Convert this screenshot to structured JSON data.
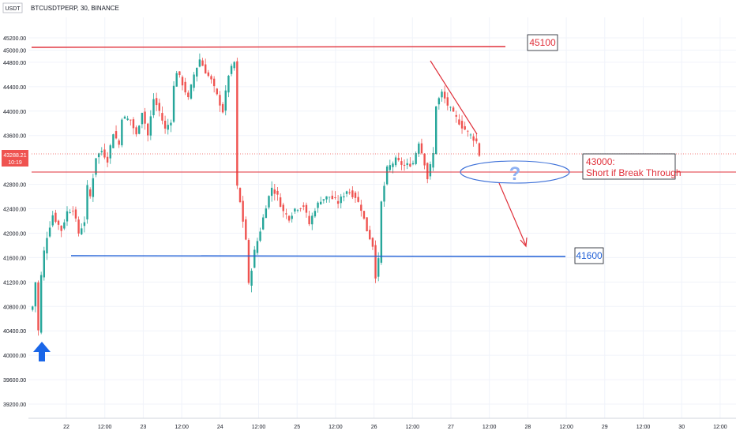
{
  "header": {
    "currency": "USDT",
    "symbol_line": "BTCUSDTPERP, 30, BINANCE"
  },
  "price_tag": {
    "price": "43288.21",
    "countdown": "10:19"
  },
  "colors": {
    "up": "#26a69a",
    "down": "#ef5350",
    "resistance": "#e0303a",
    "support": "#1f5fd6",
    "arrow_up": "#1a66e8",
    "grid": "#f0f3fa",
    "axis_text": "#131722"
  },
  "annotations": {
    "resistance_label": "45100",
    "breakout_label_line1": "43000:",
    "breakout_label_line2": "Short if Break Through",
    "support_label": "41600",
    "question_mark": "?"
  },
  "chart_data": {
    "type": "candlestick",
    "title": "BTCUSDTPERP, 30, BINANCE",
    "ylim": [
      39100,
      45350
    ],
    "y_ticks": [
      "45200.00",
      "45000.00",
      "44800.00",
      "44400.00",
      "44000.00",
      "43600.00",
      "42800.00",
      "42400.00",
      "42000.00",
      "41600.00",
      "41200.00",
      "40800.00",
      "40400.00",
      "40000.00",
      "39600.00",
      "39200.00"
    ],
    "x_ticks": [
      "22",
      "12:00",
      "23",
      "12:00",
      "24",
      "12:00",
      "25",
      "12:00",
      "26",
      "12:00",
      "27",
      "12:00",
      "28",
      "12:00",
      "29",
      "12:00",
      "30",
      "12:00"
    ],
    "levels": [
      {
        "name": "resistance",
        "value": 45100
      },
      {
        "name": "break_level",
        "value": 43000
      },
      {
        "name": "support",
        "value": 41600
      }
    ],
    "current_price": 43288.21,
    "anchors": [
      [
        0,
        40800
      ],
      [
        1,
        41200
      ],
      [
        2,
        40400
      ],
      [
        3,
        41300
      ],
      [
        4,
        41700
      ],
      [
        5,
        41950
      ],
      [
        7,
        42300
      ],
      [
        10,
        42050
      ],
      [
        12,
        42350
      ],
      [
        14,
        42400
      ],
      [
        16,
        42000
      ],
      [
        18,
        42200
      ],
      [
        19,
        42750
      ],
      [
        20,
        42600
      ],
      [
        22,
        43250
      ],
      [
        24,
        43350
      ],
      [
        26,
        43200
      ],
      [
        28,
        43650
      ],
      [
        30,
        43450
      ],
      [
        31,
        43900
      ],
      [
        34,
        43850
      ],
      [
        36,
        43600
      ],
      [
        38,
        44000
      ],
      [
        40,
        43600
      ],
      [
        42,
        44200
      ],
      [
        44,
        44000
      ],
      [
        46,
        43700
      ],
      [
        48,
        43850
      ],
      [
        49,
        44400
      ],
      [
        50,
        44650
      ],
      [
        52,
        44450
      ],
      [
        54,
        44200
      ],
      [
        56,
        44600
      ],
      [
        58,
        44850
      ],
      [
        60,
        44650
      ],
      [
        62,
        44500
      ],
      [
        64,
        44250
      ],
      [
        66,
        44000
      ],
      [
        68,
        44600
      ],
      [
        70,
        44800
      ],
      [
        71,
        42750
      ],
      [
        72,
        42500
      ],
      [
        74,
        41900
      ],
      [
        75,
        41150
      ],
      [
        77,
        41700
      ],
      [
        79,
        42050
      ],
      [
        81,
        42450
      ],
      [
        83,
        42750
      ],
      [
        85,
        42600
      ],
      [
        87,
        42350
      ],
      [
        89,
        42250
      ],
      [
        91,
        42400
      ],
      [
        94,
        42450
      ],
      [
        96,
        42150
      ],
      [
        98,
        42400
      ],
      [
        100,
        42550
      ],
      [
        103,
        42600
      ],
      [
        106,
        42500
      ],
      [
        109,
        42700
      ],
      [
        112,
        42600
      ],
      [
        114,
        42400
      ],
      [
        116,
        42050
      ],
      [
        118,
        41800
      ],
      [
        119,
        41300
      ],
      [
        120,
        41550
      ],
      [
        121,
        42500
      ],
      [
        123,
        43050
      ],
      [
        126,
        43200
      ],
      [
        129,
        43100
      ],
      [
        132,
        43150
      ],
      [
        134,
        43500
      ],
      [
        136,
        43150
      ],
      [
        137,
        42900
      ],
      [
        139,
        43300
      ],
      [
        140,
        44100
      ],
      [
        142,
        44300
      ],
      [
        144,
        44100
      ],
      [
        146,
        43950
      ],
      [
        149,
        43750
      ],
      [
        152,
        43600
      ],
      [
        154,
        43500
      ],
      [
        155,
        43288
      ]
    ]
  }
}
